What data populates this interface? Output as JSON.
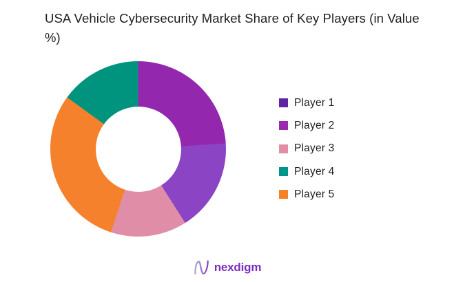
{
  "page": {
    "background": "#ffffff"
  },
  "header": {
    "title": "USA Vehicle Cybersecurity Market Share of Key Players (in Value %)"
  },
  "footer": {
    "brand": "nexdigm",
    "brand_color": "#7C2EBD"
  },
  "chart_data": {
    "type": "pie",
    "subtype": "donut",
    "title": "USA Vehicle Cybersecurity Market Share of Key Players (in Value %)",
    "units": "value_percent",
    "legend_position": "right",
    "hole_ratio": 0.49,
    "rotation_start": "top",
    "direction": "clockwise",
    "series": [
      {
        "name": "Player 1",
        "value": 24,
        "color": "#9328AE",
        "legend_color": "#5F249E"
      },
      {
        "name": "Player 2",
        "value": 17,
        "color": "#8B44C4",
        "legend_color": "#9A2BB0"
      },
      {
        "name": "Player 3",
        "value": 14,
        "color": "#E08DA8",
        "legend_color": "#E08DA5"
      },
      {
        "name": "Player 4",
        "value": 15,
        "color": "#00947E",
        "legend_color": "#009589"
      },
      {
        "name": "Player 5",
        "value": 30,
        "color": "#F5812C",
        "legend_color": "#F58229"
      }
    ],
    "slice_order_clockwise_from_top": [
      "Player 1",
      "Player 2",
      "Player 3",
      "Player 5",
      "Player 4"
    ]
  }
}
